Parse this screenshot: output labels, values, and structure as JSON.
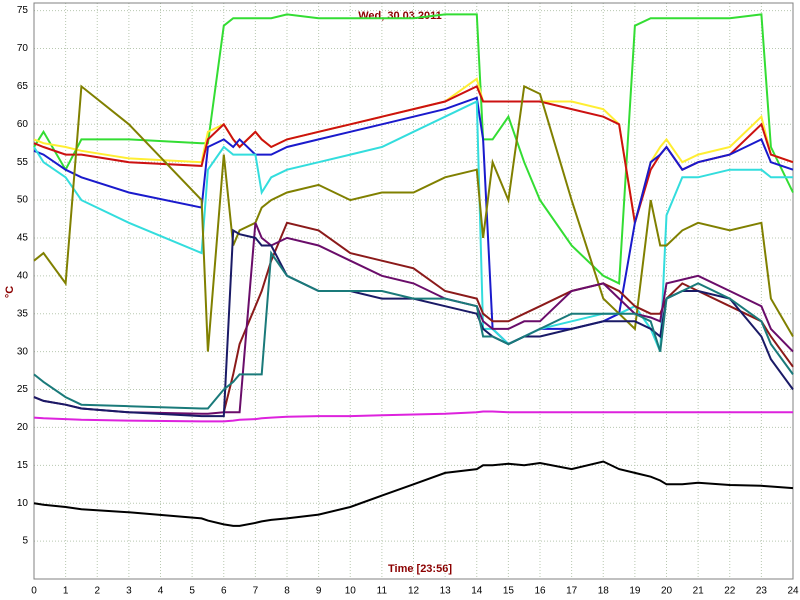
{
  "chart_data": {
    "type": "line",
    "title": "Wed, 30.03.2011",
    "x_label": "Time [23:56]",
    "y_label": "°C",
    "xlim": [
      0,
      24
    ],
    "ylim": [
      0,
      76
    ],
    "grid": true,
    "xticks": [
      0,
      1,
      2,
      3,
      4,
      5,
      6,
      7,
      8,
      9,
      10,
      11,
      12,
      13,
      14,
      15,
      16,
      17,
      18,
      19,
      20,
      21,
      22,
      23,
      24
    ],
    "yticks": [
      5,
      10,
      15,
      20,
      25,
      30,
      35,
      40,
      45,
      50,
      55,
      60,
      65,
      70,
      75
    ],
    "x": [
      0,
      0.3,
      1,
      1.5,
      3,
      5.3,
      5.5,
      6,
      6.3,
      6.5,
      7,
      7.2,
      7.5,
      8,
      9,
      10,
      11,
      12,
      13,
      14,
      14.2,
      14.5,
      15,
      15.5,
      16,
      17,
      18,
      18.5,
      19,
      19.5,
      19.8,
      20,
      20.5,
      21,
      22,
      23,
      23.3,
      24
    ],
    "series": [
      {
        "color": "#33dd33",
        "values": [
          57,
          59,
          54,
          58,
          58,
          57.5,
          57.5,
          73,
          74,
          74,
          74,
          74,
          74,
          74.5,
          74,
          74,
          74,
          74,
          74.5,
          74.5,
          58,
          58,
          61,
          55,
          50,
          44,
          40,
          39,
          73,
          74,
          74,
          74,
          74,
          74,
          74,
          74.5,
          57,
          51
        ]
      },
      {
        "color": "#ffee33",
        "values": [
          58,
          57.5,
          57,
          56.5,
          55.5,
          55,
          59,
          60,
          58,
          57,
          59,
          58,
          57,
          58,
          59,
          60,
          61,
          62,
          63,
          66,
          63,
          63,
          63,
          63,
          63,
          63,
          62,
          60,
          47,
          55,
          57,
          58,
          55,
          56,
          57,
          61,
          56,
          55
        ]
      },
      {
        "color": "#cc1111",
        "values": [
          57.5,
          57,
          56,
          56,
          55,
          54.5,
          58,
          60,
          58,
          57,
          59,
          58,
          57,
          58,
          59,
          60,
          61,
          62,
          63,
          65,
          63,
          63,
          63,
          63,
          63,
          62,
          61,
          60,
          47,
          54,
          56,
          57,
          54,
          55,
          56,
          60,
          56,
          55
        ]
      },
      {
        "color": "#1a1acc",
        "values": [
          56.5,
          56,
          54,
          53,
          51,
          49,
          57,
          58,
          57,
          58,
          56,
          56,
          56,
          57,
          58,
          59,
          60,
          61,
          62,
          63.5,
          58,
          33,
          31,
          32,
          33,
          33,
          34,
          35,
          47,
          55,
          56,
          57,
          54,
          55,
          56,
          58,
          55,
          54
        ]
      },
      {
        "color": "#33dddd",
        "values": [
          57,
          55,
          53,
          50,
          47,
          43,
          54,
          57,
          56,
          56,
          56,
          51,
          53,
          54,
          55,
          56,
          57,
          59,
          61,
          63,
          33,
          33,
          31,
          32,
          33,
          34,
          35,
          35,
          36,
          33,
          30,
          48,
          53,
          53,
          54,
          54,
          53,
          53
        ]
      },
      {
        "color": "#808000",
        "values": [
          42,
          43,
          39,
          65,
          60,
          50,
          30,
          56,
          44,
          46,
          47,
          49,
          50,
          51,
          52,
          50,
          51,
          51,
          53,
          54,
          45,
          55,
          50,
          65,
          64,
          50,
          37,
          35,
          33,
          50,
          44,
          44,
          46,
          47,
          46,
          47,
          37,
          32
        ]
      },
      {
        "color": "#8b1a1a",
        "values": [
          null,
          null,
          null,
          null,
          null,
          null,
          null,
          22,
          27,
          31,
          36,
          38,
          42,
          47,
          46,
          43,
          42,
          41,
          38,
          37,
          35,
          34,
          34,
          35,
          36,
          38,
          39,
          38,
          36,
          35,
          35,
          37,
          39,
          38,
          36,
          34,
          32,
          28
        ]
      },
      {
        "color": "#6a0d6a",
        "values": [
          24,
          23.5,
          23,
          22.5,
          22,
          21.8,
          21.8,
          22,
          22,
          22,
          47,
          45,
          44,
          45,
          44,
          42,
          40,
          39,
          37,
          36,
          34,
          33,
          33,
          34,
          34,
          38,
          39,
          37,
          35,
          34.5,
          34,
          39,
          39.5,
          40,
          38,
          36,
          33,
          30
        ]
      },
      {
        "color": "#1a1a66",
        "values": [
          24,
          23.5,
          23,
          22.5,
          22,
          21.5,
          21.5,
          21.5,
          46,
          45.5,
          45,
          44,
          44,
          40,
          38,
          38,
          37,
          37,
          36,
          35,
          33,
          32,
          31,
          32,
          32,
          33,
          34,
          34,
          34,
          33,
          32,
          37,
          38,
          38,
          37,
          32,
          29,
          25
        ]
      },
      {
        "color": "#1a7a7a",
        "values": [
          27,
          26,
          24,
          23,
          22.8,
          22.5,
          22.5,
          25,
          26,
          27,
          27,
          27,
          43,
          40,
          38,
          38,
          38,
          37,
          37,
          36,
          32,
          32,
          31,
          32,
          33,
          35,
          35,
          35,
          35,
          34,
          30,
          37,
          38,
          39,
          37,
          34,
          31,
          27
        ]
      },
      {
        "color": "#dd22dd",
        "values": [
          21.3,
          21.2,
          21.1,
          21,
          20.9,
          20.8,
          20.8,
          20.8,
          20.9,
          21,
          21.1,
          21.2,
          21.3,
          21.4,
          21.5,
          21.5,
          21.6,
          21.7,
          21.8,
          22,
          22.1,
          22.1,
          22,
          22,
          22,
          22,
          22,
          22,
          22,
          22,
          22,
          22,
          22,
          22,
          22,
          22,
          22,
          22
        ]
      },
      {
        "color": "#000000",
        "values": [
          10,
          9.8,
          9.5,
          9.2,
          8.8,
          8,
          7.7,
          7.2,
          7,
          7,
          7.4,
          7.6,
          7.8,
          8,
          8.5,
          9.5,
          11,
          12.5,
          14,
          14.5,
          15,
          15,
          15.2,
          15,
          15.3,
          14.5,
          15.5,
          14.5,
          14,
          13.5,
          13,
          12.5,
          12.5,
          12.7,
          12.4,
          12.3,
          12.2,
          12
        ]
      }
    ]
  }
}
